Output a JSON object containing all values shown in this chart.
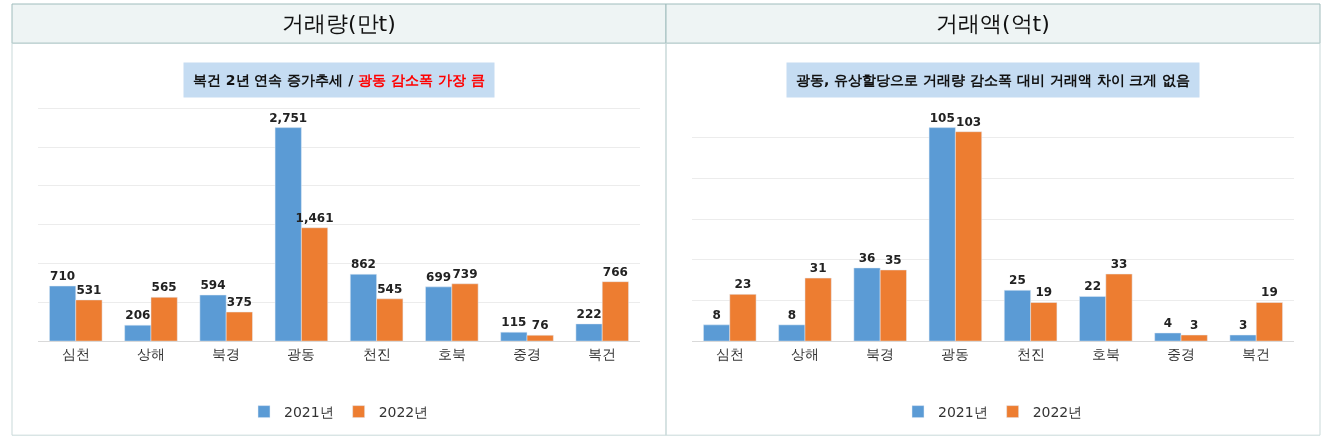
{
  "chart_data": [
    {
      "type": "bar",
      "title": "거래량(만t)",
      "subtitle": "복건 2년 연속 증가추세 / 광동 감소폭 가장 큼",
      "categories": [
        "심천",
        "상해",
        "북경",
        "광동",
        "천진",
        "호북",
        "중경",
        "복건"
      ],
      "series": [
        {
          "name": "2021년",
          "color": "#5b9bd5",
          "values": [
            710,
            206,
            594,
            2751,
            862,
            699,
            115,
            222
          ],
          "value_labels": [
            "710",
            "206",
            "594",
            "2,751",
            "862",
            "699",
            "115",
            "222"
          ]
        },
        {
          "name": "2022년",
          "color": "#ed7d31",
          "values": [
            531,
            565,
            375,
            1461,
            545,
            739,
            76,
            766
          ],
          "value_labels": [
            "531",
            "565",
            "375",
            "1,461",
            "545",
            "739",
            "76",
            "766"
          ]
        }
      ],
      "legend": "bottom",
      "grid": "y",
      "tick_labels": "x"
    },
    {
      "type": "bar",
      "title": "거래액(억t)",
      "subtitle": "광동, 유상할당으로 거래량 감소폭 대비 거래액 차이 크게 없음",
      "categories": [
        "심천",
        "상해",
        "북경",
        "광동",
        "천진",
        "호북",
        "중경",
        "복건"
      ],
      "series": [
        {
          "name": "2021년",
          "color": "#5b9bd5",
          "values": [
            8,
            8,
            36,
            105,
            25,
            22,
            4,
            3
          ]
        },
        {
          "name": "2022년",
          "color": "#ed7d31",
          "values": [
            23,
            31,
            35,
            103,
            19,
            33,
            3,
            19
          ]
        }
      ],
      "data_labels": true,
      "legend": "bottom",
      "grid": "y",
      "tick_labels": "x"
    }
  ]
}
